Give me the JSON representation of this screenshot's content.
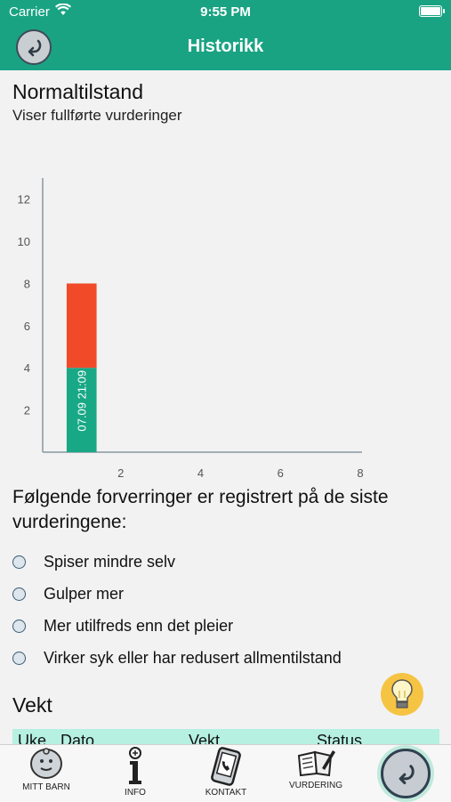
{
  "status_bar": {
    "carrier": "Carrier",
    "time": "9:55 PM"
  },
  "nav": {
    "title": "Historikk"
  },
  "section": {
    "title": "Normaltilstand",
    "subtitle": "Viser fullførte vurderinger"
  },
  "chart_data": {
    "type": "bar",
    "stacked": true,
    "x_ticks": [
      2,
      4,
      6,
      8
    ],
    "y_ticks": [
      2,
      4,
      6,
      8,
      10,
      12
    ],
    "xlim": [
      0,
      8
    ],
    "ylim": [
      0,
      13
    ],
    "bar": {
      "x_start": 0.6,
      "x_end": 1.35
    },
    "series": [
      {
        "values": [
          4
        ],
        "color": "#18a886"
      },
      {
        "values": [
          4
        ],
        "color": "#f04a29"
      }
    ],
    "bar_label": "07.09 21:09",
    "grid": false,
    "legend": "none"
  },
  "worsening": {
    "question": "Følgende forverringer er registrert på de siste vurderingene:",
    "items": [
      "Spiser mindre selv",
      "Gulper mer",
      "Mer utilfreds enn det pleier",
      "Virker syk eller har redusert allmentilstand"
    ]
  },
  "weight": {
    "title": "Vekt",
    "columns": [
      "Uke",
      "Dato",
      "Vekt",
      "Status"
    ]
  },
  "tabs": [
    {
      "label": "MITT BARN",
      "icon": "baby-icon"
    },
    {
      "label": "INFO",
      "icon": "info-icon"
    },
    {
      "label": "KONTAKT",
      "icon": "phone-icon"
    },
    {
      "label": "VURDERING",
      "icon": "assessment-icon"
    }
  ],
  "colors": {
    "accent": "#1aa383",
    "table_header": "#b5f0e0",
    "bulb": "#f6c443"
  }
}
